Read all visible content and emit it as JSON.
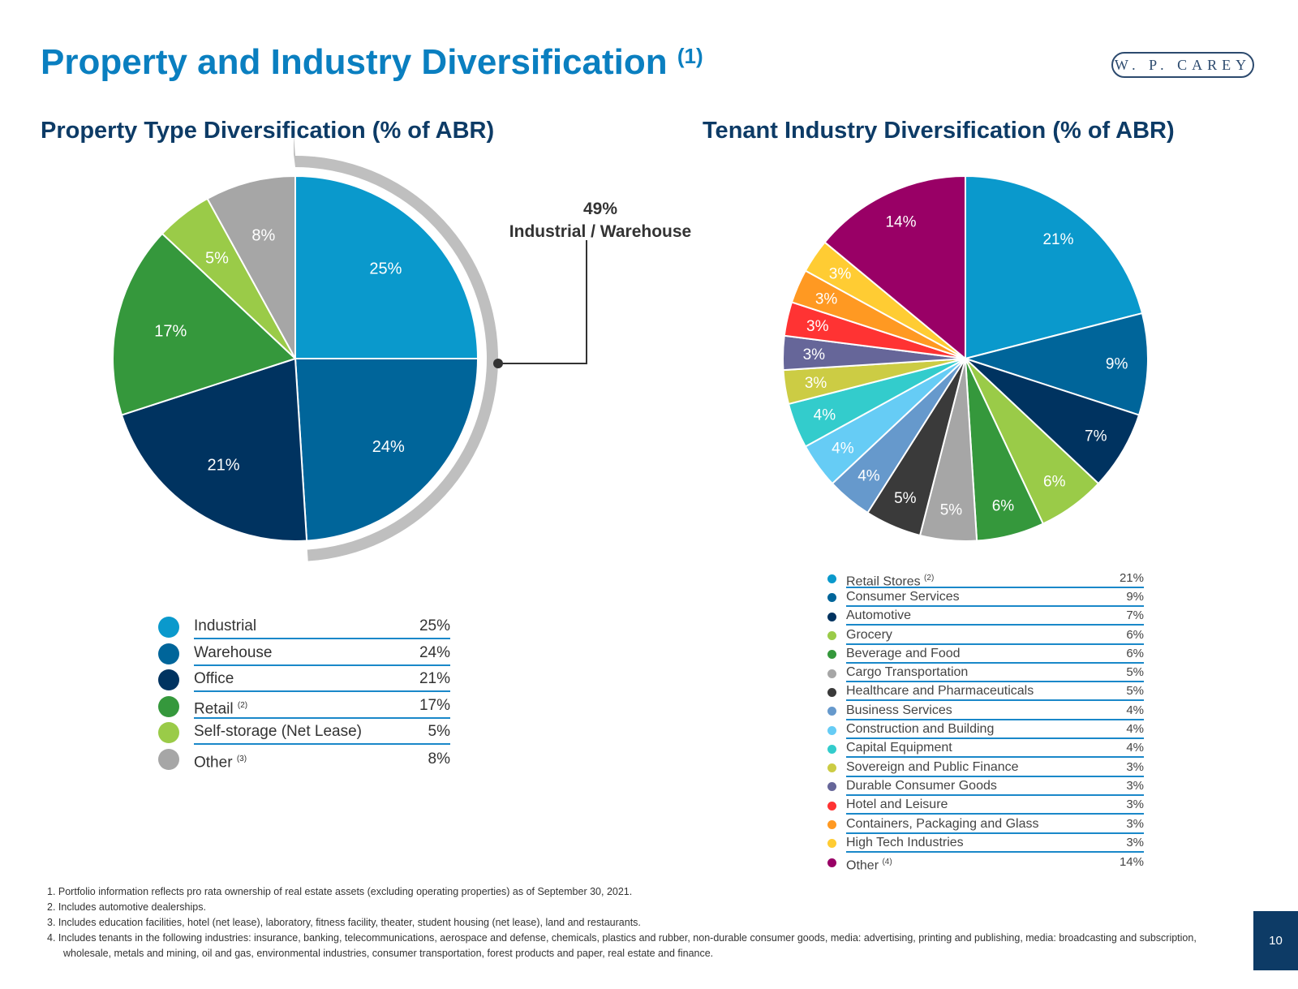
{
  "title": "Property and Industry Diversification",
  "title_note": "(1)",
  "logo": "W. P. CAREY",
  "page_number": "10",
  "chart_data": [
    {
      "type": "pie",
      "title": "Property Type Diversification (% of ABR)",
      "slices": [
        {
          "label": "Industrial",
          "value": 25,
          "display": "25%",
          "color": "#0a99cc"
        },
        {
          "label": "Warehouse",
          "value": 24,
          "display": "24%",
          "color": "#00659a"
        },
        {
          "label": "Office",
          "value": 21,
          "display": "21%",
          "color": "#003360"
        },
        {
          "label": "Retail",
          "note": "(2)",
          "value": 17,
          "display": "17%",
          "color": "#35983c"
        },
        {
          "label": "Self-storage (Net Lease)",
          "value": 5,
          "display": "5%",
          "color": "#9acb48"
        },
        {
          "label": "Other",
          "note": "(3)",
          "value": 8,
          "display": "8%",
          "color": "#a6a6a6"
        }
      ],
      "callout": {
        "value": "49%",
        "label": "Industrial / Warehouse",
        "color": "#bfbfbf"
      }
    },
    {
      "type": "pie",
      "title": "Tenant Industry Diversification (% of ABR)",
      "slices": [
        {
          "label": "Retail Stores",
          "note": "(2)",
          "value": 21,
          "display": "21%",
          "color": "#0a99cc"
        },
        {
          "label": "Consumer Services",
          "value": 9,
          "display": "9%",
          "color": "#00659a"
        },
        {
          "label": "Automotive",
          "value": 7,
          "display": "7%",
          "color": "#003360"
        },
        {
          "label": "Grocery",
          "value": 6,
          "display": "6%",
          "color": "#9acb48"
        },
        {
          "label": "Beverage and Food",
          "value": 6,
          "display": "6%",
          "color": "#35983c"
        },
        {
          "label": "Cargo Transportation",
          "value": 5,
          "display": "5%",
          "color": "#a6a6a6"
        },
        {
          "label": "Healthcare and Pharmaceuticals",
          "value": 5,
          "display": "5%",
          "color": "#3a3a3a"
        },
        {
          "label": "Business Services",
          "value": 4,
          "display": "4%",
          "color": "#6699cc"
        },
        {
          "label": "Construction and Building",
          "value": 4,
          "display": "4%",
          "color": "#66ccf5"
        },
        {
          "label": "Capital Equipment",
          "value": 4,
          "display": "4%",
          "color": "#33cccc"
        },
        {
          "label": "Sovereign and Public Finance",
          "value": 3,
          "display": "3%",
          "color": "#cccc44"
        },
        {
          "label": "Durable Consumer Goods",
          "value": 3,
          "display": "3%",
          "color": "#666699"
        },
        {
          "label": "Hotel and Leisure",
          "value": 3,
          "display": "3%",
          "color": "#ff3333"
        },
        {
          "label": "Containers, Packaging and Glass",
          "value": 3,
          "display": "3%",
          "color": "#ff9922"
        },
        {
          "label": "High Tech Industries",
          "value": 3,
          "display": "3%",
          "color": "#ffcc33"
        },
        {
          "label": "Other",
          "note": "(4)",
          "value": 14,
          "display": "14%",
          "color": "#990066"
        }
      ]
    }
  ],
  "footnotes": [
    "1. Portfolio information reflects pro rata ownership of real estate assets (excluding operating properties) as of September 30, 2021.",
    "2. Includes automotive dealerships.",
    "3. Includes education facilities, hotel (net lease), laboratory, fitness facility, theater, student housing (net lease), land and restaurants.",
    "4. Includes tenants in the following industries: insurance, banking, telecommunications, aerospace and defense, chemicals, plastics and rubber, non-durable consumer goods, media: advertising, printing and publishing, media: broadcasting and subscription, wholesale, metals and mining, oil and gas, environmental industries, consumer transportation, forest products and paper, real estate and finance."
  ]
}
